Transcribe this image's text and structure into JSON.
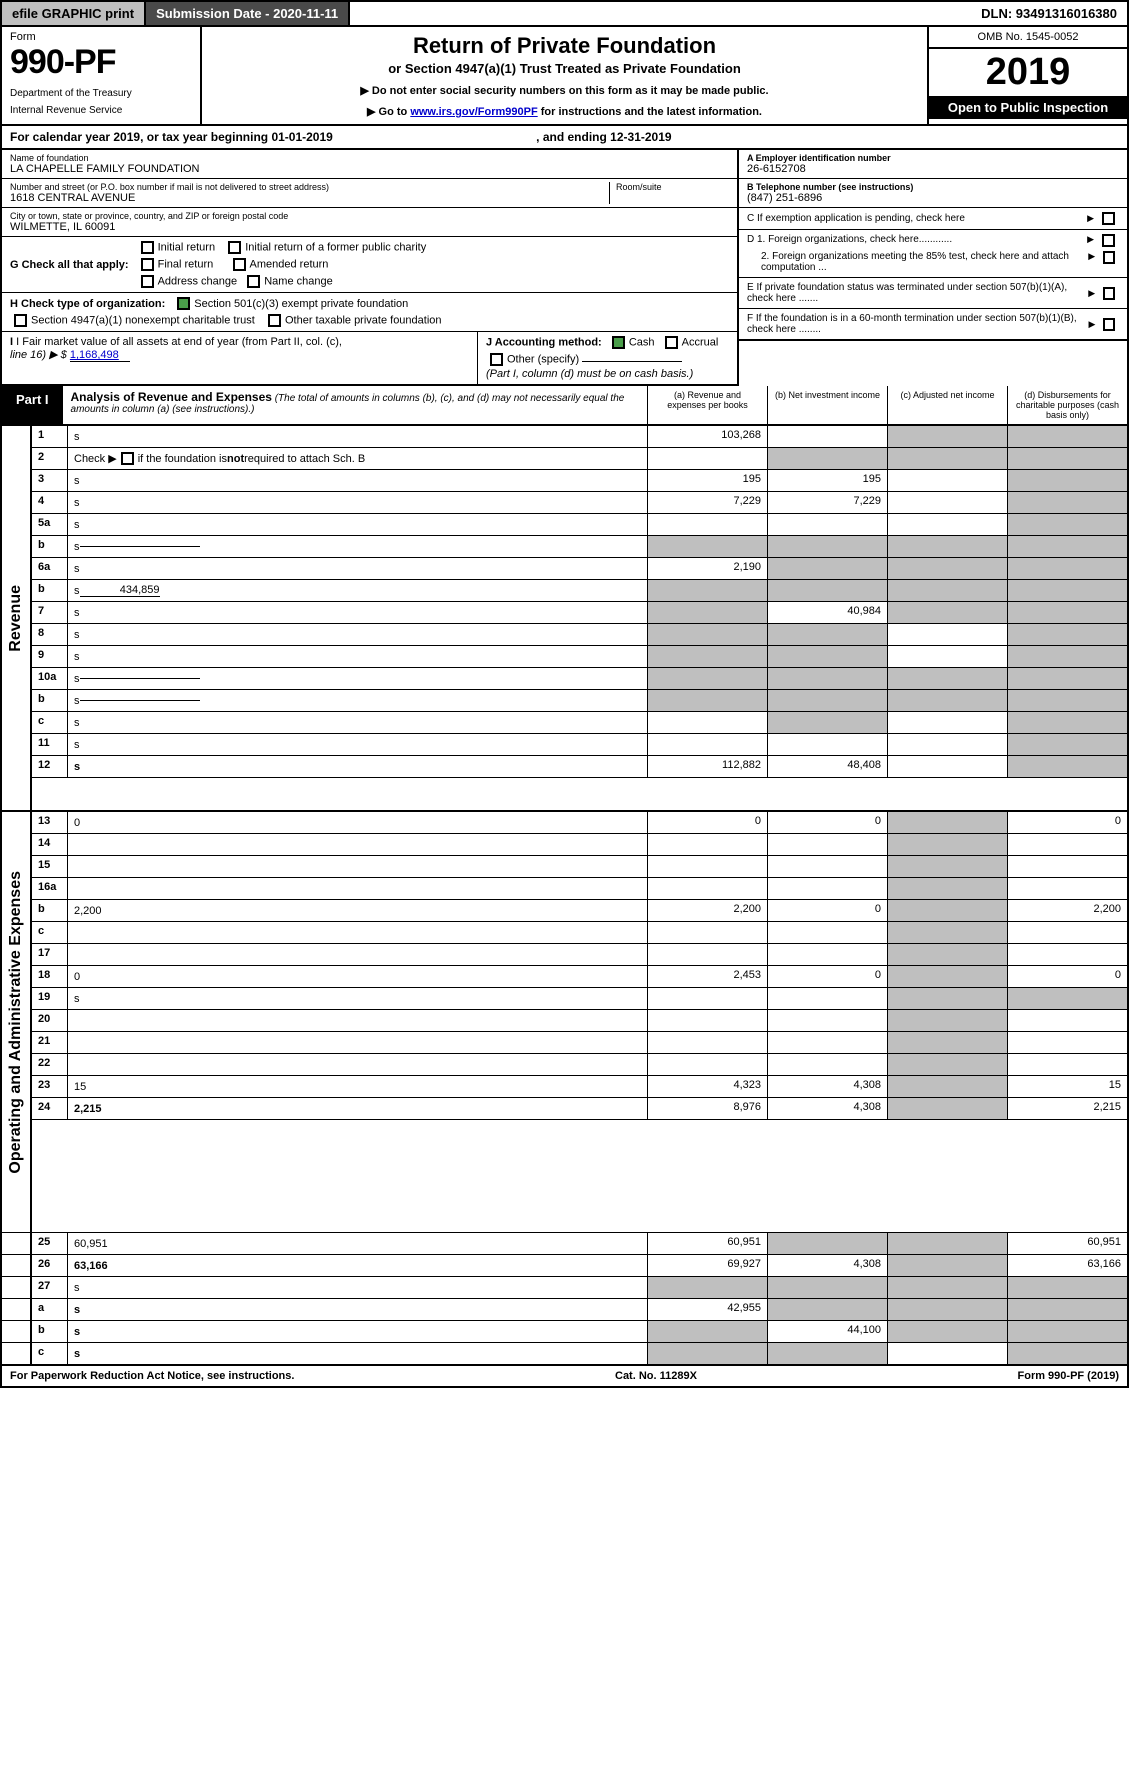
{
  "topbar": {
    "efile": "efile GRAPHIC print",
    "submission": "Submission Date - 2020-11-11",
    "dln": "DLN: 93491316016380"
  },
  "header": {
    "form_label": "Form",
    "form_no": "990-PF",
    "dept": "Department of the Treasury",
    "irs": "Internal Revenue Service",
    "title": "Return of Private Foundation",
    "subtitle": "or Section 4947(a)(1) Trust Treated as Private Foundation",
    "note1": "▶ Do not enter social security numbers on this form as it may be made public.",
    "note2_pre": "▶ Go to ",
    "note2_link": "www.irs.gov/Form990PF",
    "note2_post": " for instructions and the latest information.",
    "omb": "OMB No. 1545-0052",
    "year": "2019",
    "open": "Open to Public Inspection"
  },
  "cal": {
    "text": "For calendar year 2019, or tax year beginning 01-01-2019",
    "end": ", and ending 12-31-2019"
  },
  "name": {
    "lbl": "Name of foundation",
    "val": "LA CHAPELLE FAMILY FOUNDATION"
  },
  "addr": {
    "lbl": "Number and street (or P.O. box number if mail is not delivered to street address)",
    "val": "1618 CENTRAL AVENUE",
    "room_lbl": "Room/suite"
  },
  "city": {
    "lbl": "City or town, state or province, country, and ZIP or foreign postal code",
    "val": "WILMETTE, IL  60091"
  },
  "ein": {
    "lbl": "A Employer identification number",
    "val": "26-6152708"
  },
  "tel": {
    "lbl": "B Telephone number (see instructions)",
    "val": "(847) 251-6896"
  },
  "c": "C  If exemption application is pending, check here",
  "d1": "D 1. Foreign organizations, check here............",
  "d2": "2. Foreign organizations meeting the 85% test, check here and attach computation ...",
  "e": "E  If private foundation status was terminated under section 507(b)(1)(A), check here .......",
  "f": "F  If the foundation is in a 60-month termination under section 507(b)(1)(B), check here ........",
  "g": {
    "lbl": "G Check all that apply:",
    "o1": "Initial return",
    "o2": "Initial return of a former public charity",
    "o3": "Final return",
    "o4": "Amended return",
    "o5": "Address change",
    "o6": "Name change"
  },
  "h": {
    "lbl": "H Check type of organization:",
    "o1": "Section 501(c)(3) exempt private foundation",
    "o2": "Section 4947(a)(1) nonexempt charitable trust",
    "o3": "Other taxable private foundation"
  },
  "i": {
    "lbl": "I Fair market value of all assets at end of year (from Part II, col. (c),",
    "line": "line 16) ▶ $",
    "val": "1,168,498"
  },
  "j": {
    "lbl": "J Accounting method:",
    "cash": "Cash",
    "accrual": "Accrual",
    "other": "Other (specify)",
    "note": "(Part I, column (d) must be on cash basis.)"
  },
  "part1": {
    "lbl": "Part I",
    "title": "Analysis of Revenue and Expenses",
    "sub": "(The total of amounts in columns (b), (c), and (d) may not necessarily equal the amounts in column (a) (see instructions).)",
    "ca": "(a)    Revenue and expenses per books",
    "cb": "(b)   Net investment income",
    "cc": "(c)   Adjusted net income",
    "cd": "(d)   Disbursements for charitable purposes (cash basis only)"
  },
  "side": {
    "rev": "Revenue",
    "exp": "Operating and Administrative Expenses"
  },
  "rows": [
    {
      "n": "1",
      "d": "s",
      "a": "103,268",
      "b": "",
      "c": "s"
    },
    {
      "n": "2",
      "d": "s",
      "a": "",
      "b": "s",
      "c": "s",
      "html": true
    },
    {
      "n": "3",
      "d": "s",
      "a": "195",
      "b": "195",
      "c": ""
    },
    {
      "n": "4",
      "d": "s",
      "a": "7,229",
      "b": "7,229",
      "c": ""
    },
    {
      "n": "5a",
      "d": "s",
      "a": "",
      "b": "",
      "c": ""
    },
    {
      "n": "b",
      "d": "s",
      "a": "s",
      "b": "s",
      "c": "s",
      "inline": true
    },
    {
      "n": "6a",
      "d": "s",
      "a": "2,190",
      "b": "s",
      "c": "s"
    },
    {
      "n": "b",
      "d": "s",
      "a": "s",
      "b": "s",
      "c": "s",
      "val": "434,859",
      "inline": true
    },
    {
      "n": "7",
      "d": "s",
      "a": "s",
      "b": "40,984",
      "c": "s"
    },
    {
      "n": "8",
      "d": "s",
      "a": "s",
      "b": "s",
      "c": ""
    },
    {
      "n": "9",
      "d": "s",
      "a": "s",
      "b": "s",
      "c": ""
    },
    {
      "n": "10a",
      "d": "s",
      "a": "s",
      "b": "s",
      "c": "s",
      "inline": true
    },
    {
      "n": "b",
      "d": "s",
      "a": "s",
      "b": "s",
      "c": "s",
      "inline": true
    },
    {
      "n": "c",
      "d": "s",
      "a": "",
      "b": "s",
      "c": ""
    },
    {
      "n": "11",
      "d": "s",
      "a": "",
      "b": "",
      "c": ""
    },
    {
      "n": "12",
      "d": "s",
      "a": "112,882",
      "b": "48,408",
      "c": "",
      "bold": true
    },
    {
      "n": "13",
      "d": "0",
      "a": "0",
      "b": "0",
      "c": "s"
    },
    {
      "n": "14",
      "d": "",
      "a": "",
      "b": "",
      "c": "s"
    },
    {
      "n": "15",
      "d": "",
      "a": "",
      "b": "",
      "c": "s"
    },
    {
      "n": "16a",
      "d": "",
      "a": "",
      "b": "",
      "c": "s"
    },
    {
      "n": "b",
      "d": "2,200",
      "a": "2,200",
      "b": "0",
      "c": "s"
    },
    {
      "n": "c",
      "d": "",
      "a": "",
      "b": "",
      "c": "s"
    },
    {
      "n": "17",
      "d": "",
      "a": "",
      "b": "",
      "c": "s"
    },
    {
      "n": "18",
      "d": "0",
      "a": "2,453",
      "b": "0",
      "c": "s"
    },
    {
      "n": "19",
      "d": "s",
      "a": "",
      "b": "",
      "c": "s"
    },
    {
      "n": "20",
      "d": "",
      "a": "",
      "b": "",
      "c": "s"
    },
    {
      "n": "21",
      "d": "",
      "a": "",
      "b": "",
      "c": "s"
    },
    {
      "n": "22",
      "d": "",
      "a": "",
      "b": "",
      "c": "s"
    },
    {
      "n": "23",
      "d": "15",
      "a": "4,323",
      "b": "4,308",
      "c": "s"
    },
    {
      "n": "24",
      "d": "2,215",
      "a": "8,976",
      "b": "4,308",
      "c": "s",
      "bold": true
    },
    {
      "n": "25",
      "d": "60,951",
      "a": "60,951",
      "b": "s",
      "c": "s"
    },
    {
      "n": "26",
      "d": "63,166",
      "a": "69,927",
      "b": "4,308",
      "c": "s",
      "bold": true
    },
    {
      "n": "27",
      "d": "s",
      "a": "s",
      "b": "s",
      "c": "s"
    },
    {
      "n": "a",
      "d": "s",
      "a": "42,955",
      "b": "s",
      "c": "s",
      "bold": true
    },
    {
      "n": "b",
      "d": "s",
      "a": "s",
      "b": "44,100",
      "c": "s",
      "bold": true
    },
    {
      "n": "c",
      "d": "s",
      "a": "s",
      "b": "s",
      "c": "",
      "bold": true
    }
  ],
  "footer": {
    "left": "For Paperwork Reduction Act Notice, see instructions.",
    "mid": "Cat. No. 11289X",
    "right": "Form 990-PF (2019)"
  },
  "colors": {
    "shade": "#bfbfbf",
    "black": "#000000",
    "link": "#0000cc",
    "check": "#4a9e4a"
  }
}
